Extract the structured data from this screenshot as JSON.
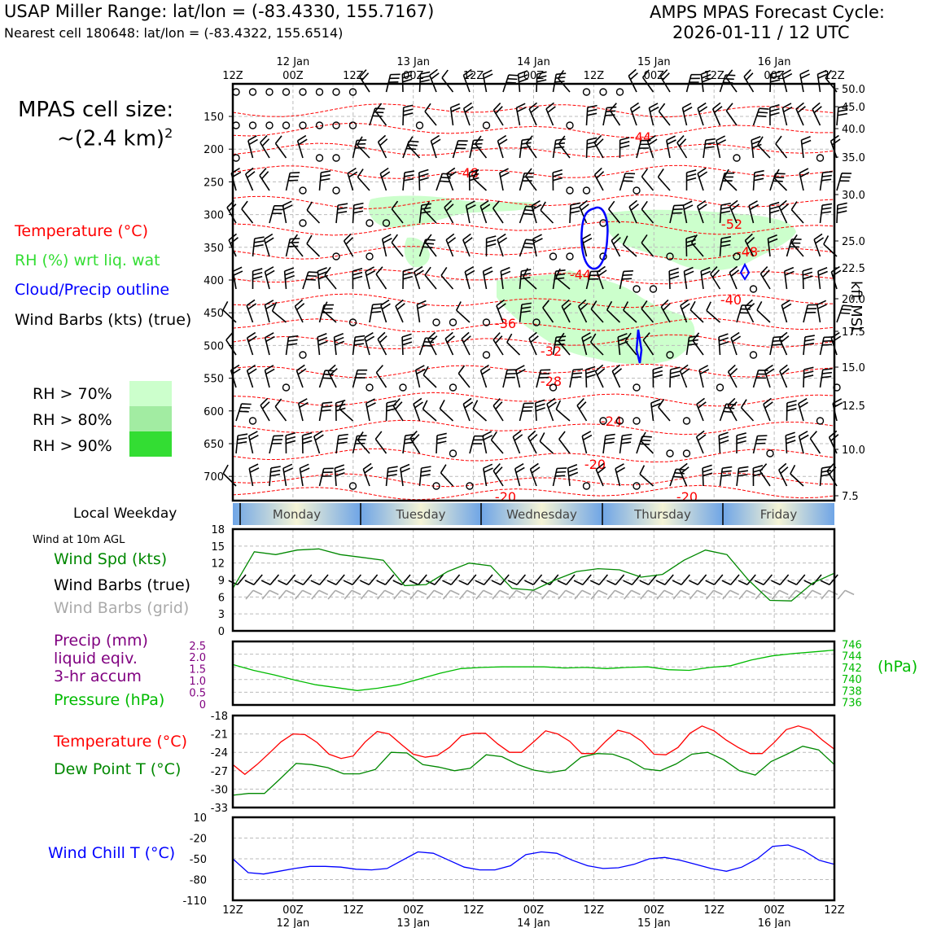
{
  "header": {
    "title_left": "USAP Miller Range: lat/lon = (-83.4330, 155.7167)",
    "subtitle_left": "Nearest cell 180648: lat/lon = (-83.4322, 155.6514)",
    "title_right_1": "AMPS MPAS Forecast Cycle:",
    "title_right_2": "2026-01-11 / 12 UTC"
  },
  "side": {
    "cell_size_1": "MPAS cell size:",
    "cell_size_2": "~(2.4 km)",
    "cell_size_sup": "2",
    "legend_temp": "Temperature (°C)",
    "legend_rh": "RH (%) wrt liq. wat",
    "legend_cloud": "Cloud/Precip outline",
    "legend_barbs": "Wind Barbs (kts) (true)",
    "rh70": "RH > 70%",
    "rh80": "RH > 80%",
    "rh90": "RH > 90%",
    "weekday_label": "Local Weekday",
    "wind10m": "Wind at 10m AGL",
    "wind_spd": "Wind Spd (kts)",
    "wind_barbs_true": "Wind Barbs (true)",
    "wind_barbs_grid": "Wind Barbs (grid)",
    "precip_1": "Precip (mm)",
    "precip_2": "liquid eqiv.",
    "precip_3": "3-hr accum",
    "pressure": "Pressure (hPa)",
    "pressure_unit": "(hPa)",
    "temperature": "Temperature (°C)",
    "dewpoint": "Dew Point T (°C)",
    "windchill": "Wind Chill T (°C)",
    "kft": "kft MSL"
  },
  "colors": {
    "temp": "#ff0000",
    "rh_text": "#33dd33",
    "cloud": "#0000ff",
    "wind_spd": "#008800",
    "barb_grid": "#aaaaaa",
    "precip": "#800080",
    "pressure": "#00bb00",
    "dew": "#008800",
    "windchill": "#0000ff",
    "rh70": "#ccffcc",
    "rh80": "#a2eca2",
    "rh90": "#33dd33"
  },
  "time_axis": {
    "top_ticks": [
      "12Z",
      "00Z",
      "12Z",
      "00Z",
      "12Z",
      "00Z",
      "12Z",
      "00Z",
      "12Z",
      "00Z",
      "12Z"
    ],
    "dates": [
      "12 Jan",
      "13 Jan",
      "14 Jan",
      "15 Jan",
      "16 Jan"
    ]
  },
  "weekdays": [
    "Monday",
    "Tuesday",
    "Wednesday",
    "Thursday",
    "Friday"
  ],
  "chart_data": [
    {
      "type": "heatmap",
      "name": "upper-air cross-section",
      "y_pressure_ticks": [
        "150",
        "200",
        "250",
        "300",
        "350",
        "400",
        "450",
        "500",
        "550",
        "600",
        "650",
        "700"
      ],
      "y_height_ticks": [
        "50.0",
        "45.0",
        "40.0",
        "35.0",
        "30.0",
        "25.0",
        "22.5",
        "20.0",
        "17.5",
        "15.0",
        "12.5",
        "10.0",
        "7.5"
      ],
      "temp_contour_labels": [
        "-44",
        "-48",
        "-52",
        "-48",
        "-44",
        "-40",
        "-36",
        "-32",
        "-28",
        "-24",
        "-20",
        "-20",
        "-20"
      ]
    },
    {
      "type": "line",
      "name": "Wind Spd (kts)",
      "ylim": [
        0,
        18
      ],
      "yticks": [
        "0",
        "3",
        "6",
        "9",
        "12",
        "15",
        "18"
      ],
      "values": [
        7.5,
        14,
        13.5,
        14.3,
        14.5,
        13.5,
        13,
        12.5,
        8,
        8.2,
        10.5,
        12,
        11.5,
        7.5,
        7.2,
        9,
        10.5,
        11,
        10.8,
        9.5,
        10,
        12.5,
        14.3,
        13.5,
        9,
        5.4,
        5.3,
        8.5,
        10.2
      ]
    },
    {
      "type": "line",
      "name": "Pressure (hPa)",
      "ylim": [
        735.5,
        746.5
      ],
      "yticks_left": [
        "0",
        "0.5",
        "1.0",
        "1.5",
        "2.0",
        "2.5"
      ],
      "yticks_right": [
        "736",
        "738",
        "740",
        "742",
        "744",
        "746"
      ],
      "values": [
        742.5,
        741.5,
        740.7,
        739.8,
        739,
        738.5,
        738,
        738.4,
        739,
        740,
        741,
        741.8,
        742,
        742.1,
        742.1,
        742.1,
        741.9,
        742,
        741.8,
        742,
        742.1,
        741.6,
        741.5,
        742,
        742.3,
        743.3,
        744,
        744.4,
        744.7,
        745
      ]
    },
    {
      "type": "line",
      "name": "Temperature / Dew Point",
      "ylim": [
        -33,
        -18
      ],
      "yticks": [
        "-18",
        "-21",
        "-24",
        "-27",
        "-30",
        "-33"
      ],
      "series": [
        {
          "name": "Temperature (°C)",
          "values": [
            -26,
            -27.6,
            -26,
            -24.2,
            -22.3,
            -21,
            -21.1,
            -22.4,
            -24.3,
            -25,
            -24.6,
            -22.3,
            -20.6,
            -21,
            -22.7,
            -24.3,
            -24.8,
            -24.5,
            -23.2,
            -21.3,
            -20.9,
            -20.9,
            -22.6,
            -24,
            -24,
            -22.3,
            -20.5,
            -21,
            -22.2,
            -24.2,
            -24.2,
            -22.2,
            -20.4,
            -20.9,
            -22.2,
            -24.3,
            -24.4,
            -23.2,
            -20.9,
            -19.7,
            -20.5,
            -22,
            -23.2,
            -24.2,
            -24.2,
            -22.4,
            -20.3,
            -19.7,
            -20.3,
            -22,
            -23.5
          ]
        },
        {
          "name": "Dew Point T (°C)",
          "values": [
            -31,
            -30.7,
            -30.7,
            -28.3,
            -25.8,
            -26,
            -26.5,
            -27.5,
            -27.5,
            -26.8,
            -24,
            -24.1,
            -26,
            -26.4,
            -27,
            -26.6,
            -24.4,
            -24.7,
            -26,
            -26.9,
            -27.3,
            -26.9,
            -24.8,
            -24.2,
            -24.3,
            -25.2,
            -26.7,
            -27,
            -25.9,
            -24.3,
            -24,
            -25.2,
            -27,
            -27.7,
            -25.5,
            -24.3,
            -23,
            -23.6,
            -26
          ]
        }
      ]
    },
    {
      "type": "line",
      "name": "Wind Chill T (°C)",
      "ylim": [
        -110,
        10
      ],
      "yticks": [
        "10",
        "-20",
        "-50",
        "-80",
        "-110"
      ],
      "values": [
        -50,
        -70,
        -72,
        -68,
        -64,
        -61,
        -61,
        -62,
        -65,
        -66,
        -64,
        -52,
        -40,
        -42,
        -52,
        -62,
        -66,
        -66,
        -60,
        -44,
        -40,
        -42,
        -52,
        -60,
        -64,
        -63,
        -58,
        -50,
        -48,
        -52,
        -58,
        -64,
        -68,
        -62,
        -50,
        -32,
        -30,
        -38,
        -52,
        -58
      ]
    }
  ]
}
